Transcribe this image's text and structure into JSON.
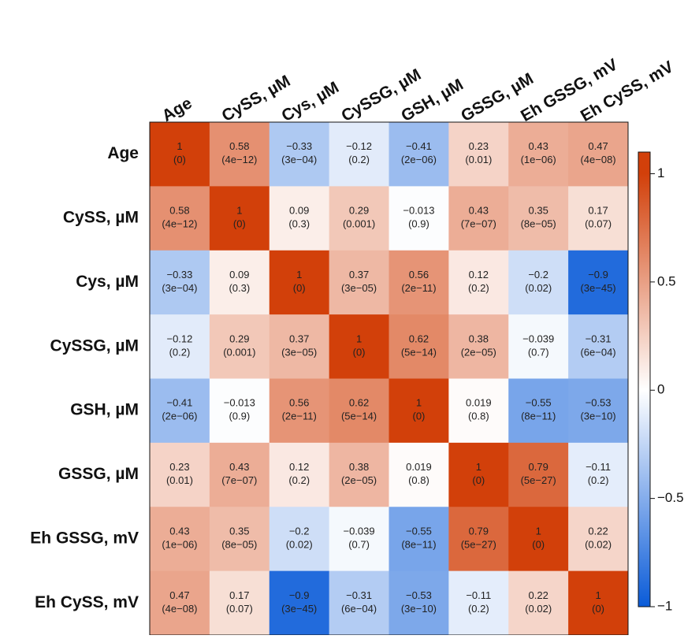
{
  "chart_data": {
    "type": "heatmap",
    "categories": [
      "Age",
      "CySS, µM",
      "Cys, µM",
      "CySSG, µM",
      "GSH, µM",
      "GSSG, µM",
      "Eh GSSG, mV",
      "Eh CySS, mV"
    ],
    "values": [
      [
        1,
        0.58,
        -0.33,
        -0.12,
        -0.41,
        0.23,
        0.43,
        0.47
      ],
      [
        0.58,
        1,
        0.09,
        0.29,
        -0.013,
        0.43,
        0.35,
        0.17
      ],
      [
        -0.33,
        0.09,
        1,
        0.37,
        0.56,
        0.12,
        -0.2,
        -0.9
      ],
      [
        -0.12,
        0.29,
        0.37,
        1,
        0.62,
        0.38,
        -0.039,
        -0.31
      ],
      [
        -0.41,
        -0.013,
        0.56,
        0.62,
        1,
        0.019,
        -0.55,
        -0.53
      ],
      [
        0.23,
        0.43,
        0.12,
        0.38,
        0.019,
        1,
        0.79,
        -0.11
      ],
      [
        0.43,
        0.35,
        -0.2,
        -0.039,
        -0.55,
        0.79,
        1,
        0.22
      ],
      [
        0.47,
        0.17,
        -0.9,
        -0.31,
        -0.53,
        -0.11,
        0.22,
        1
      ]
    ],
    "value_labels": [
      [
        "1",
        "0.58",
        "−0.33",
        "−0.12",
        "−0.41",
        "0.23",
        "0.43",
        "0.47"
      ],
      [
        "0.58",
        "1",
        "0.09",
        "0.29",
        "−0.013",
        "0.43",
        "0.35",
        "0.17"
      ],
      [
        "−0.33",
        "0.09",
        "1",
        "0.37",
        "0.56",
        "0.12",
        "−0.2",
        "−0.9"
      ],
      [
        "−0.12",
        "0.29",
        "0.37",
        "1",
        "0.62",
        "0.38",
        "−0.039",
        "−0.31"
      ],
      [
        "−0.41",
        "−0.013",
        "0.56",
        "0.62",
        "1",
        "0.019",
        "−0.55",
        "−0.53"
      ],
      [
        "0.23",
        "0.43",
        "0.12",
        "0.38",
        "0.019",
        "1",
        "0.79",
        "−0.11"
      ],
      [
        "0.43",
        "0.35",
        "−0.2",
        "−0.039",
        "−0.55",
        "0.79",
        "1",
        "0.22"
      ],
      [
        "0.47",
        "0.17",
        "−0.9",
        "−0.31",
        "−0.53",
        "−0.11",
        "0.22",
        "1"
      ]
    ],
    "p_labels": [
      [
        "(0)",
        "(4e−12)",
        "(3e−04)",
        "(0.2)",
        "(2e−06)",
        "(0.01)",
        "(1e−06)",
        "(4e−08)"
      ],
      [
        "(4e−12)",
        "(0)",
        "(0.3)",
        "(0.001)",
        "(0.9)",
        "(7e−07)",
        "(8e−05)",
        "(0.07)"
      ],
      [
        "(3e−04)",
        "(0.3)",
        "(0)",
        "(3e−05)",
        "(2e−11)",
        "(0.2)",
        "(0.02)",
        "(3e−45)"
      ],
      [
        "(0.2)",
        "(0.001)",
        "(3e−05)",
        "(0)",
        "(5e−14)",
        "(2e−05)",
        "(0.7)",
        "(6e−04)"
      ],
      [
        "(2e−06)",
        "(0.9)",
        "(2e−11)",
        "(5e−14)",
        "(0)",
        "(0.8)",
        "(8e−11)",
        "(3e−10)"
      ],
      [
        "(0.01)",
        "(7e−07)",
        "(0.2)",
        "(2e−05)",
        "(0.8)",
        "(0)",
        "(5e−27)",
        "(0.2)"
      ],
      [
        "(1e−06)",
        "(8e−05)",
        "(0.02)",
        "(0.7)",
        "(8e−11)",
        "(5e−27)",
        "(0)",
        "(0.02)"
      ],
      [
        "(4e−08)",
        "(0.07)",
        "(3e−45)",
        "(6e−04)",
        "(3e−10)",
        "(0.2)",
        "(0.02)",
        "(0)"
      ]
    ],
    "color_stops": [
      [
        -1,
        "#0a5bd8"
      ],
      [
        0,
        "#ffffff"
      ],
      [
        1,
        "#d2400a"
      ]
    ],
    "zlim": [
      -1,
      1.1
    ],
    "zticks": [
      {
        "value": -1,
        "label": "−1"
      },
      {
        "value": -0.5,
        "label": "−0.5"
      },
      0,
      0.5,
      1
    ]
  }
}
